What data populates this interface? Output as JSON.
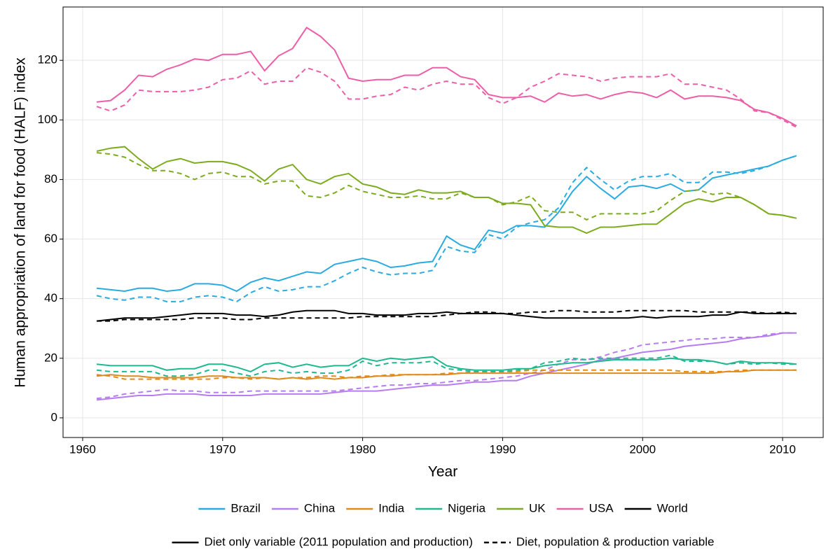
{
  "chart_data": {
    "type": "line",
    "x_label": "Year",
    "y_label": "Human appropriation of land for food (HALF) index",
    "x": [
      1961,
      1962,
      1963,
      1964,
      1965,
      1966,
      1967,
      1968,
      1969,
      1970,
      1971,
      1972,
      1973,
      1974,
      1975,
      1976,
      1977,
      1978,
      1979,
      1980,
      1981,
      1982,
      1983,
      1984,
      1985,
      1986,
      1987,
      1988,
      1989,
      1990,
      1991,
      1992,
      1993,
      1994,
      1995,
      1996,
      1997,
      1998,
      1999,
      2000,
      2001,
      2002,
      2003,
      2004,
      2005,
      2006,
      2007,
      2008,
      2009,
      2010,
      2011
    ],
    "xlim": [
      1958.6,
      2012.9
    ],
    "xticks": [
      1960,
      1970,
      1980,
      1990,
      2000,
      2010
    ],
    "ylim": [
      -6.6,
      137.9
    ],
    "yticks": [
      0,
      20,
      40,
      60,
      80,
      100,
      120
    ],
    "grid": true,
    "linetypes": [
      {
        "name": "Diet only variable (2011 population and production)",
        "dash": "solid"
      },
      {
        "name": "Diet, population & production variable",
        "dash": "dashed"
      }
    ],
    "series": [
      {
        "name": "Brazil",
        "color": "#29abe2",
        "lines": [
          {
            "linetype": 0,
            "values": [
              43.5,
              43,
              42.5,
              43.5,
              43.5,
              42.5,
              43,
              45,
              45,
              44.5,
              42.5,
              45.5,
              47,
              46,
              47.5,
              49,
              48.5,
              51.5,
              52.5,
              53.5,
              52.5,
              50.5,
              51,
              52,
              52.5,
              61,
              58,
              56.5,
              63,
              62,
              64.5,
              64.5,
              64,
              69,
              76,
              81,
              77,
              73.5,
              77.5,
              78,
              77,
              78.5,
              76,
              76.5,
              80.5,
              81.5,
              82.5,
              83.5,
              84.5,
              86.5,
              88
            ]
          },
          {
            "linetype": 1,
            "values": [
              41,
              40,
              39.5,
              40.5,
              40.5,
              39,
              39,
              40.5,
              41,
              40.5,
              39,
              42,
              44,
              42.5,
              43,
              44,
              44,
              46,
              48.5,
              50.5,
              49,
              48,
              48.5,
              48.5,
              49.5,
              57.5,
              56,
              55.5,
              61.5,
              60,
              64,
              65.5,
              66.5,
              70.5,
              79,
              84,
              80,
              76.5,
              79.5,
              81,
              81,
              82,
              79,
              79,
              82.5,
              82.5,
              82,
              83,
              84.5,
              86.5,
              88
            ]
          }
        ]
      },
      {
        "name": "China",
        "color": "#b77cf1",
        "lines": [
          {
            "linetype": 0,
            "values": [
              6,
              6.5,
              7,
              7.5,
              7.5,
              8,
              8,
              8,
              7.5,
              7.5,
              7.5,
              7.5,
              8,
              8,
              8,
              8,
              8,
              8.5,
              9,
              9,
              9,
              9.5,
              10,
              10.5,
              11,
              11,
              11.5,
              12,
              12,
              12.5,
              12.5,
              14,
              15,
              16,
              17,
              18,
              19.5,
              20,
              21,
              22,
              22.5,
              23,
              24,
              24.5,
              25,
              25.5,
              26.5,
              27,
              27.5,
              28.5,
              28.5
            ]
          },
          {
            "linetype": 1,
            "values": [
              6.5,
              7,
              8,
              8.5,
              9,
              9.5,
              9,
              9,
              8.5,
              8.5,
              8.5,
              9,
              9,
              9,
              9,
              9,
              9,
              9,
              9.5,
              10,
              10.5,
              11,
              11,
              11.5,
              11.5,
              12,
              12.5,
              12.5,
              13,
              13.5,
              14,
              15,
              16,
              18,
              19.5,
              19.5,
              20.5,
              22,
              23,
              24.5,
              25,
              25.5,
              26,
              26.5,
              26.5,
              27,
              27,
              27,
              28,
              28.5,
              28.5
            ]
          }
        ]
      },
      {
        "name": "India",
        "color": "#e08a1a",
        "lines": [
          {
            "linetype": 0,
            "values": [
              14,
              14.5,
              14,
              14,
              13.5,
              13.5,
              13.5,
              13.5,
              14,
              14,
              13.5,
              13.5,
              13.5,
              13,
              13.5,
              13,
              13.5,
              13,
              13.5,
              13.5,
              14,
              14,
              14.5,
              14.5,
              14.5,
              14.5,
              15,
              15,
              15,
              15,
              15,
              15,
              15,
              15,
              15,
              15,
              15,
              15,
              15,
              15,
              15,
              15,
              15,
              15,
              15,
              15.5,
              15.5,
              16,
              16,
              16,
              16
            ]
          },
          {
            "linetype": 1,
            "values": [
              14.5,
              14,
              13,
              13,
              13,
              13,
              13,
              13,
              13,
              13.5,
              13.5,
              13,
              13.5,
              13,
              13.5,
              13.5,
              14,
              14,
              13.5,
              14,
              14,
              14.5,
              14.5,
              14.5,
              14.5,
              15,
              15,
              15.5,
              15.5,
              15.5,
              15.5,
              16,
              16,
              16,
              16,
              16,
              16,
              16,
              16,
              16,
              16,
              16,
              15.5,
              15.5,
              15.5,
              15.5,
              16,
              16,
              16,
              16,
              16
            ]
          }
        ]
      },
      {
        "name": "Nigeria",
        "color": "#1fb88f",
        "lines": [
          {
            "linetype": 0,
            "values": [
              18,
              17.5,
              17.5,
              17.5,
              17.5,
              16,
              16.5,
              16.5,
              18,
              18,
              17,
              15.5,
              18,
              18.5,
              17,
              18,
              17,
              17.5,
              17.5,
              20,
              19,
              20,
              19.5,
              20,
              20.5,
              17.5,
              16.5,
              16,
              16,
              16,
              16.5,
              16.5,
              17.5,
              18,
              18.5,
              18.5,
              19,
              19.5,
              19.5,
              19.5,
              19.5,
              20,
              19.5,
              19.5,
              19,
              18,
              19,
              18.5,
              18.5,
              18.5,
              18
            ]
          },
          {
            "linetype": 1,
            "values": [
              16,
              15.5,
              15.5,
              15.5,
              15.5,
              14,
              14,
              14.5,
              16,
              16,
              15,
              14,
              15.5,
              16,
              15,
              15.5,
              15,
              15,
              16,
              19,
              17.5,
              18.5,
              18.5,
              18.5,
              19,
              16.5,
              16,
              15.5,
              15.5,
              15.5,
              16,
              16.5,
              18.5,
              19,
              20,
              19.5,
              20,
              20,
              20,
              20,
              20,
              21,
              19,
              19,
              19,
              18,
              18.5,
              18,
              18.5,
              18,
              18
            ]
          }
        ]
      },
      {
        "name": "UK",
        "color": "#7cac1c",
        "lines": [
          {
            "linetype": 0,
            "values": [
              89.5,
              90.5,
              91,
              87,
              83.5,
              86,
              87,
              85.5,
              86,
              86,
              85,
              83,
              79.5,
              83.5,
              85,
              80,
              78.5,
              81,
              82,
              78.5,
              77.5,
              75.5,
              75,
              76.5,
              75.5,
              75.5,
              76,
              74,
              74,
              72,
              72,
              71.5,
              64.5,
              64,
              64,
              62,
              64,
              64,
              64.5,
              65,
              65,
              68.5,
              72,
              73.5,
              72.5,
              74,
              74,
              71.5,
              68.5,
              68,
              67
            ]
          },
          {
            "linetype": 1,
            "values": [
              89,
              88.5,
              87.5,
              85,
              83,
              83,
              82,
              80,
              82,
              82.5,
              81,
              81,
              78.5,
              79.5,
              79.5,
              74.5,
              74,
              75.5,
              78,
              76,
              75,
              74,
              74,
              74.5,
              73.5,
              73.5,
              75.5,
              74,
              74,
              71.5,
              72.5,
              74.5,
              69.5,
              69,
              69,
              66.5,
              68.5,
              68.5,
              68.5,
              68.5,
              69.5,
              73,
              76,
              76.5,
              75,
              75.5,
              74,
              71.5,
              68.5,
              68,
              67
            ]
          }
        ]
      },
      {
        "name": "USA",
        "color": "#ec5fa8",
        "lines": [
          {
            "linetype": 0,
            "values": [
              106,
              106.5,
              110,
              115,
              114.5,
              117,
              118.5,
              120.5,
              120,
              122,
              122,
              123,
              116.5,
              121.5,
              124,
              131,
              128,
              123.5,
              114,
              113,
              113.5,
              113.5,
              115,
              115,
              117.5,
              117.5,
              114.5,
              113.5,
              108.5,
              107.5,
              107.5,
              108,
              106,
              109,
              108,
              108.5,
              107,
              108.5,
              109.5,
              109,
              107.5,
              110,
              107,
              108,
              108,
              107.5,
              106.5,
              103.5,
              102.5,
              100.5,
              98
            ]
          },
          {
            "linetype": 1,
            "values": [
              104.5,
              103,
              105,
              110,
              109.5,
              109.5,
              109.5,
              110,
              111,
              113.5,
              114,
              116.5,
              112,
              113,
              113,
              117.5,
              116,
              113,
              107,
              107,
              108,
              108.5,
              111,
              110,
              112,
              113,
              112,
              112,
              107.5,
              105.5,
              107.5,
              111,
              113,
              115.5,
              115,
              114.5,
              113,
              114,
              114.5,
              114.5,
              114.5,
              115.5,
              112,
              112,
              111,
              110,
              107,
              103,
              102.5,
              100,
              97.5
            ]
          }
        ]
      },
      {
        "name": "World",
        "color": "#000000",
        "lines": [
          {
            "linetype": 0,
            "values": [
              32.5,
              33,
              33.5,
              33.5,
              33.5,
              34,
              34.5,
              35,
              35,
              35,
              34.5,
              34.5,
              34,
              34.5,
              35.5,
              36,
              36,
              36,
              35,
              35,
              34.5,
              34.5,
              34.5,
              35,
              35,
              35.5,
              35,
              35,
              35,
              35,
              34.5,
              34,
              33.5,
              33.5,
              33.5,
              33.5,
              33.5,
              33.5,
              33.5,
              34,
              33.5,
              34,
              34,
              34,
              34.5,
              34.5,
              35.5,
              35,
              35,
              35,
              35
            ]
          },
          {
            "linetype": 1,
            "values": [
              32.5,
              32.5,
              33,
              33,
              33,
              33,
              33,
              33.5,
              33.5,
              33.5,
              33,
              33,
              33.5,
              33.5,
              33.5,
              33.5,
              33.5,
              33.5,
              33.5,
              34,
              34,
              34,
              34,
              34,
              34,
              34.5,
              35,
              35.5,
              35.5,
              35,
              35,
              35.5,
              35.5,
              36,
              36,
              35.5,
              35.5,
              35.5,
              36,
              36,
              36,
              36,
              36,
              35.5,
              35.5,
              35.5,
              35.5,
              35.5,
              35,
              35.5,
              35
            ]
          }
        ]
      }
    ]
  }
}
